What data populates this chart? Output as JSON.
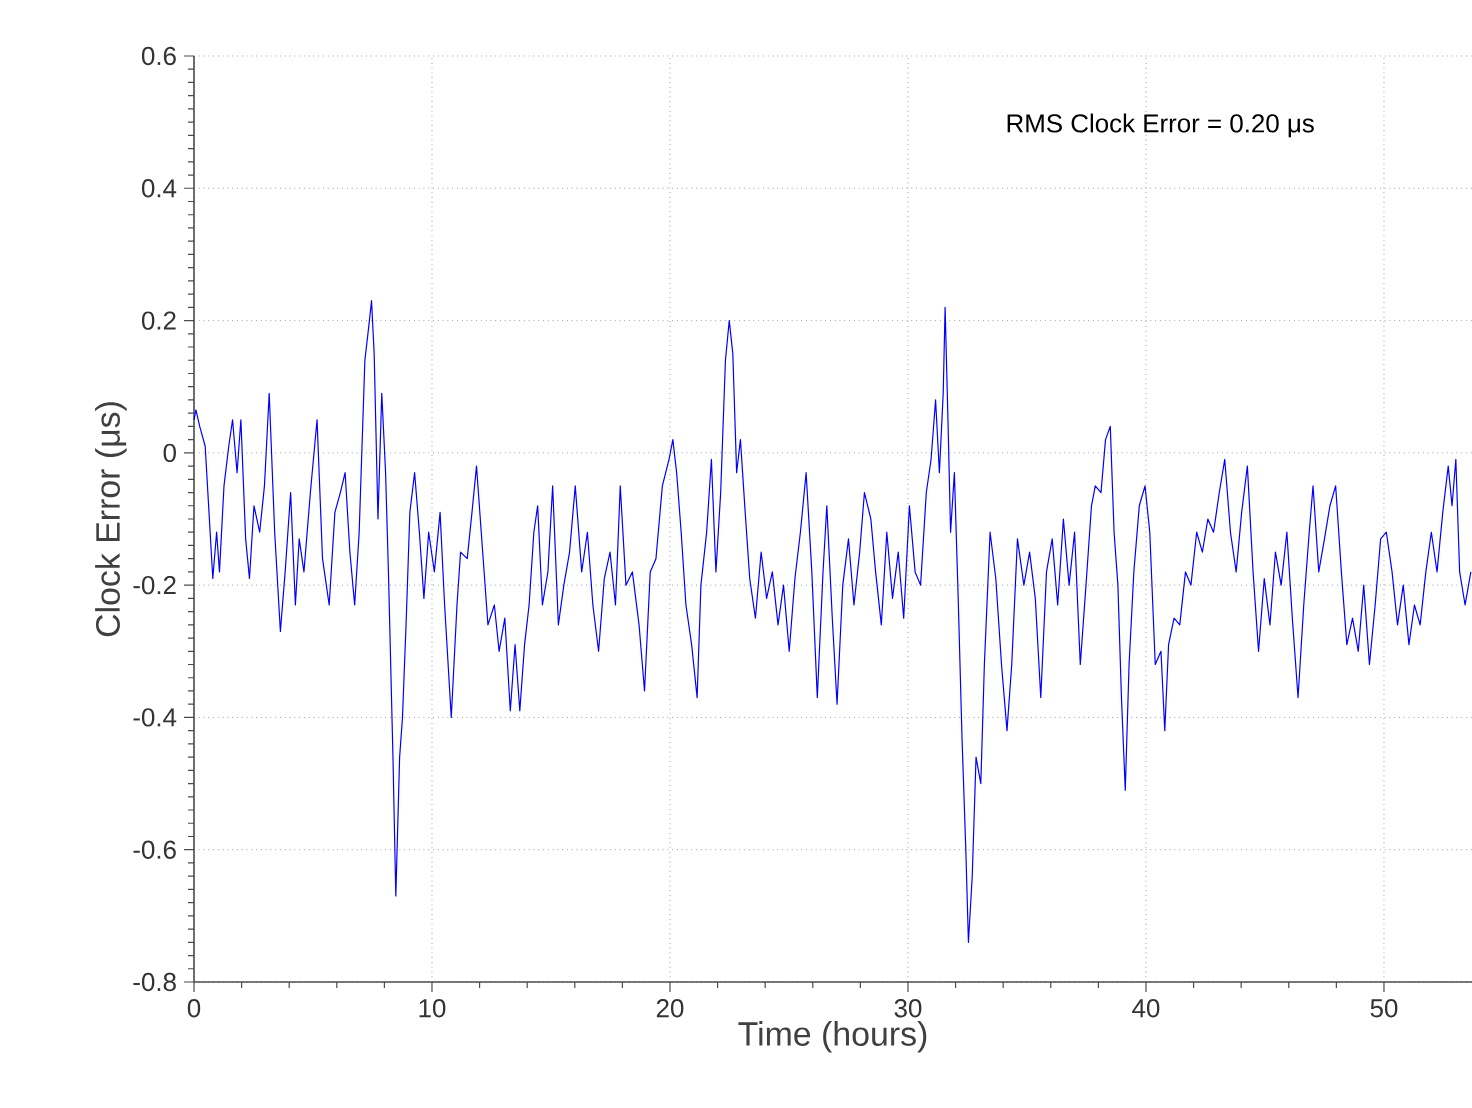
{
  "chart_data": {
    "type": "line",
    "xlabel": "Time (hours)",
    "ylabel": "Clock Error (μs)",
    "annotations": [
      "RMS Clock Error = 0.20 μs"
    ],
    "xlim": [
      0,
      53.7
    ],
    "ylim": [
      -0.8,
      0.6
    ],
    "xticks": [
      0,
      10,
      20,
      30,
      40,
      50
    ],
    "yticks": [
      -0.8,
      -0.6,
      -0.4,
      -0.2,
      0,
      0.2,
      0.4,
      0.6
    ],
    "grid": true,
    "series": [
      {
        "color": "#0000ff",
        "x": [
          0,
          0.08,
          0.24,
          0.47,
          0.63,
          0.79,
          0.95,
          1.07,
          1.26,
          1.46,
          1.62,
          1.81,
          1.97,
          2.17,
          2.33,
          2.52,
          2.76,
          2.96,
          3.16,
          3.39,
          3.63,
          3.83,
          4.06,
          4.26,
          4.42,
          4.62,
          4.89,
          5.17,
          5.4,
          5.68,
          5.92,
          6.15,
          6.35,
          6.55,
          6.75,
          6.94,
          7.18,
          7.34,
          7.46,
          7.57,
          7.73,
          7.89,
          8.05,
          8.17,
          8.36,
          8.48,
          8.64,
          8.76,
          8.92,
          9.07,
          9.27,
          9.47,
          9.66,
          9.86,
          10.1,
          10.34,
          10.53,
          10.81,
          11.05,
          11.2,
          11.48,
          11.68,
          11.87,
          12.07,
          12.35,
          12.62,
          12.82,
          13.06,
          13.29,
          13.49,
          13.69,
          13.89,
          14.08,
          14.28,
          14.44,
          14.64,
          14.87,
          15.07,
          15.31,
          15.54,
          15.78,
          16.02,
          16.29,
          16.53,
          16.76,
          17,
          17.24,
          17.48,
          17.71,
          17.91,
          18.15,
          18.42,
          18.7,
          18.93,
          19.17,
          19.41,
          19.68,
          19.96,
          20.12,
          20.28,
          20.47,
          20.67,
          20.91,
          21.14,
          21.3,
          21.54,
          21.74,
          21.93,
          22.13,
          22.33,
          22.49,
          22.64,
          22.8,
          22.96,
          23.16,
          23.35,
          23.59,
          23.83,
          24.06,
          24.3,
          24.54,
          24.77,
          25.01,
          25.25,
          25.48,
          25.72,
          25.96,
          26.19,
          26.43,
          26.59,
          26.82,
          27.02,
          27.26,
          27.5,
          27.73,
          27.97,
          28.17,
          28.44,
          28.64,
          28.88,
          29.11,
          29.35,
          29.59,
          29.82,
          30.06,
          30.3,
          30.53,
          30.77,
          30.97,
          31.16,
          31.32,
          31.48,
          31.56,
          31.68,
          31.79,
          31.95,
          32.11,
          32.27,
          32.43,
          32.54,
          32.7,
          32.86,
          33.06,
          33.21,
          33.45,
          33.69,
          33.93,
          34.16,
          34.36,
          34.6,
          34.87,
          35.11,
          35.35,
          35.58,
          35.82,
          36.06,
          36.29,
          36.53,
          36.77,
          37,
          37.24,
          37.48,
          37.71,
          37.87,
          38.11,
          38.3,
          38.5,
          38.66,
          38.82,
          38.97,
          39.13,
          39.29,
          39.49,
          39.72,
          39.96,
          40.16,
          40.39,
          40.63,
          40.79,
          40.95,
          41.18,
          41.42,
          41.66,
          41.89,
          42.13,
          42.37,
          42.6,
          42.84,
          43.08,
          43.31,
          43.55,
          43.79,
          44.02,
          44.26,
          44.5,
          44.73,
          44.97,
          45.21,
          45.44,
          45.68,
          45.92,
          46.15,
          46.39,
          46.63,
          46.86,
          47.02,
          47.26,
          47.5,
          47.73,
          47.97,
          48.21,
          48.44,
          48.68,
          48.92,
          49.15,
          49.39,
          49.63,
          49.86,
          50.1,
          50.34,
          50.57,
          50.81,
          51.05,
          51.28,
          51.52,
          51.76,
          51.99,
          52.23,
          52.47,
          52.7,
          52.86,
          53.02,
          53.18,
          53.41,
          53.65
        ],
        "values": [
          0.05,
          0.065,
          0.04,
          0.01,
          -0.09,
          -0.19,
          -0.12,
          -0.18,
          -0.05,
          0.01,
          0.05,
          -0.03,
          0.05,
          -0.13,
          -0.19,
          -0.08,
          -0.12,
          -0.05,
          0.09,
          -0.12,
          -0.27,
          -0.18,
          -0.06,
          -0.23,
          -0.13,
          -0.18,
          -0.06,
          0.05,
          -0.16,
          -0.23,
          -0.09,
          -0.06,
          -0.03,
          -0.15,
          -0.23,
          -0.12,
          0.14,
          0.19,
          0.23,
          0.15,
          -0.1,
          0.09,
          -0.03,
          -0.18,
          -0.46,
          -0.67,
          -0.46,
          -0.4,
          -0.25,
          -0.09,
          -0.03,
          -0.12,
          -0.22,
          -0.12,
          -0.18,
          -0.09,
          -0.23,
          -0.4,
          -0.23,
          -0.15,
          -0.16,
          -0.09,
          -0.02,
          -0.12,
          -0.26,
          -0.23,
          -0.3,
          -0.25,
          -0.39,
          -0.29,
          -0.39,
          -0.29,
          -0.23,
          -0.12,
          -0.08,
          -0.23,
          -0.18,
          -0.05,
          -0.26,
          -0.2,
          -0.15,
          -0.05,
          -0.18,
          -0.12,
          -0.23,
          -0.3,
          -0.19,
          -0.15,
          -0.23,
          -0.05,
          -0.2,
          -0.18,
          -0.26,
          -0.36,
          -0.18,
          -0.16,
          -0.05,
          -0.01,
          0.02,
          -0.03,
          -0.12,
          -0.23,
          -0.29,
          -0.37,
          -0.2,
          -0.12,
          -0.01,
          -0.18,
          -0.06,
          0.14,
          0.2,
          0.15,
          -0.03,
          0.02,
          -0.09,
          -0.19,
          -0.25,
          -0.15,
          -0.22,
          -0.18,
          -0.26,
          -0.2,
          -0.3,
          -0.19,
          -0.12,
          -0.03,
          -0.18,
          -0.37,
          -0.18,
          -0.08,
          -0.25,
          -0.38,
          -0.2,
          -0.13,
          -0.23,
          -0.15,
          -0.06,
          -0.1,
          -0.18,
          -0.26,
          -0.12,
          -0.22,
          -0.15,
          -0.25,
          -0.08,
          -0.18,
          -0.2,
          -0.06,
          -0.01,
          0.08,
          -0.03,
          0.09,
          0.22,
          0.05,
          -0.12,
          -0.03,
          -0.22,
          -0.43,
          -0.6,
          -0.74,
          -0.64,
          -0.46,
          -0.5,
          -0.32,
          -0.12,
          -0.19,
          -0.32,
          -0.42,
          -0.32,
          -0.13,
          -0.2,
          -0.15,
          -0.22,
          -0.37,
          -0.18,
          -0.13,
          -0.23,
          -0.1,
          -0.2,
          -0.12,
          -0.32,
          -0.2,
          -0.08,
          -0.05,
          -0.06,
          0.02,
          0.04,
          -0.12,
          -0.2,
          -0.37,
          -0.51,
          -0.32,
          -0.18,
          -0.08,
          -0.05,
          -0.12,
          -0.32,
          -0.3,
          -0.42,
          -0.29,
          -0.25,
          -0.26,
          -0.18,
          -0.2,
          -0.12,
          -0.15,
          -0.1,
          -0.12,
          -0.06,
          -0.01,
          -0.12,
          -0.18,
          -0.09,
          -0.02,
          -0.18,
          -0.3,
          -0.19,
          -0.26,
          -0.15,
          -0.2,
          -0.12,
          -0.25,
          -0.37,
          -0.23,
          -0.12,
          -0.05,
          -0.18,
          -0.13,
          -0.08,
          -0.05,
          -0.18,
          -0.29,
          -0.25,
          -0.3,
          -0.2,
          -0.32,
          -0.23,
          -0.13,
          -0.12,
          -0.18,
          -0.26,
          -0.2,
          -0.29,
          -0.23,
          -0.26,
          -0.18,
          -0.12,
          -0.18,
          -0.09,
          -0.02,
          -0.08,
          -0.01,
          -0.18,
          -0.23,
          -0.18
        ]
      }
    ]
  }
}
